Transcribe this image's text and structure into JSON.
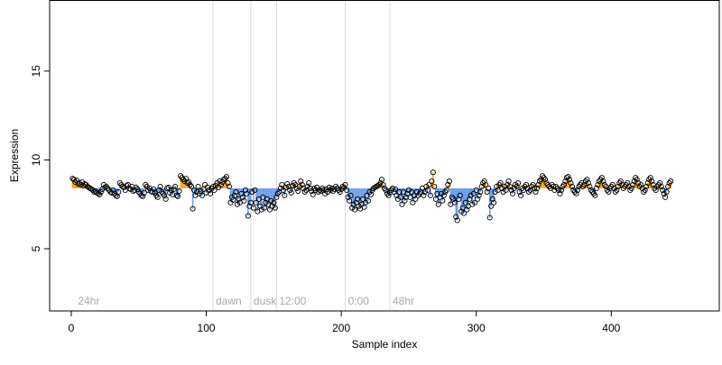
{
  "chart_data": {
    "type": "scatter",
    "title": "",
    "xlabel": "Sample index",
    "ylabel": "Expression",
    "xlim": [
      -16,
      480
    ],
    "ylim": [
      1.5,
      19
    ],
    "x_ticks": [
      0,
      100,
      200,
      300,
      400
    ],
    "y_ticks": [
      5,
      10,
      15
    ],
    "grid": false,
    "legend": "none",
    "baseline": 8.4,
    "phase_markers": [
      {
        "x": 105,
        "label": "dawn"
      },
      {
        "x": 133,
        "label": "dusk"
      },
      {
        "x": 152,
        "label": "12:00"
      },
      {
        "x": 203,
        "label": "0:00"
      },
      {
        "x": 236,
        "label": "48hr"
      }
    ],
    "phase_label_start": {
      "x": 3,
      "label": "24hr"
    },
    "colors": {
      "above_baseline": "#f5a623",
      "below_baseline": "#6d9eeb",
      "marker_line": "#d9d9d9",
      "point_edge": "#000000",
      "axis": "#000000"
    },
    "y_values": [
      8.95,
      8.9,
      8.75,
      8.85,
      8.65,
      8.7,
      8.6,
      8.75,
      8.55,
      8.65,
      8.6,
      8.5,
      8.45,
      8.4,
      8.35,
      8.3,
      8.2,
      8.25,
      8.15,
      8.1,
      8.05,
      8.2,
      8.35,
      8.6,
      8.45,
      8.5,
      8.4,
      8.3,
      8.2,
      8.15,
      8.3,
      8.1,
      8.0,
      7.95,
      8.2,
      8.7,
      8.6,
      8.5,
      8.45,
      8.3,
      8.55,
      8.6,
      8.4,
      8.35,
      8.5,
      8.25,
      8.3,
      8.45,
      8.35,
      8.2,
      8.1,
      8.0,
      7.95,
      8.15,
      8.6,
      8.5,
      8.3,
      8.4,
      8.25,
      8.2,
      8.35,
      8.15,
      8.0,
      7.9,
      8.3,
      8.5,
      8.2,
      8.1,
      8.0,
      7.8,
      8.4,
      8.45,
      8.15,
      8.3,
      8.05,
      8.35,
      8.5,
      8.0,
      7.95,
      8.25,
      9.1,
      9.0,
      8.9,
      8.8,
      8.95,
      8.7,
      8.75,
      8.6,
      8.5,
      7.25,
      8.3,
      8.0,
      8.2,
      8.5,
      8.1,
      8.25,
      8.0,
      8.35,
      8.6,
      8.15,
      8.45,
      8.3,
      8.1,
      8.4,
      8.5,
      8.3,
      8.55,
      8.7,
      8.45,
      8.8,
      8.6,
      8.75,
      8.9,
      8.95,
      9.05,
      8.7,
      8.5,
      7.6,
      7.9,
      7.75,
      8.0,
      8.2,
      7.5,
      7.8,
      7.6,
      8.1,
      7.9,
      7.7,
      8.3,
      8.1,
      6.85,
      7.4,
      7.6,
      8.2,
      7.3,
      8.3,
      7.6,
      7.1,
      7.8,
      7.4,
      7.2,
      7.9,
      7.3,
      7.6,
      7.8,
      7.5,
      7.2,
      7.7,
      7.4,
      7.6,
      7.3,
      7.9,
      8.1,
      8.2,
      8.4,
      8.6,
      8.3,
      8.0,
      8.45,
      8.65,
      8.5,
      8.3,
      8.15,
      8.55,
      8.7,
      8.6,
      8.4,
      8.25,
      8.5,
      8.8,
      8.6,
      8.4,
      8.2,
      8.3,
      8.5,
      8.7,
      8.4,
      8.25,
      8.05,
      8.4,
      8.3,
      8.45,
      8.2,
      8.3,
      8.25,
      8.4,
      8.3,
      8.1,
      8.35,
      8.2,
      8.45,
      8.3,
      8.4,
      8.25,
      8.35,
      8.5,
      8.4,
      8.3,
      8.2,
      8.35,
      8.5,
      8.45,
      8.6,
      8.3,
      7.9,
      7.7,
      8.0,
      7.3,
      7.5,
      7.2,
      7.6,
      7.8,
      7.4,
      7.25,
      7.5,
      7.8,
      7.35,
      7.6,
      8.0,
      7.7,
      8.2,
      8.05,
      8.3,
      8.4,
      8.45,
      8.5,
      8.55,
      8.6,
      8.7,
      8.9,
      8.6,
      8.4,
      8.3,
      8.1,
      8.0,
      8.15,
      8.3,
      8.4,
      8.2,
      8.35,
      8.0,
      7.8,
      8.2,
      7.9,
      7.5,
      8.2,
      7.7,
      7.9,
      8.1,
      8.3,
      7.9,
      8.2,
      7.6,
      8.0,
      7.8,
      8.2,
      8.0,
      8.1,
      8.2,
      8.4,
      8.0,
      8.2,
      8.5,
      8.3,
      8.6,
      8.0,
      8.8,
      9.3,
      8.5,
      7.8,
      8.1,
      7.5,
      7.9,
      8.1,
      7.7,
      8.0,
      8.2,
      8.3,
      8.6,
      8.8,
      7.5,
      7.9,
      7.8,
      7.6,
      6.8,
      6.6,
      7.8,
      8.0,
      7.1,
      7.3,
      7.0,
      7.6,
      7.2,
      7.4,
      7.8,
      8.0,
      7.5,
      8.1,
      7.6,
      8.3,
      7.8,
      8.0,
      8.2,
      8.5,
      8.7,
      8.8,
      8.6,
      8.2,
      8.4,
      6.75,
      7.4,
      7.8,
      7.6,
      8.2,
      8.5,
      8.3,
      8.6,
      8.7,
      8.4,
      8.2,
      8.5,
      8.3,
      8.6,
      8.8,
      8.5,
      8.3,
      8.1,
      8.4,
      8.6,
      8.5,
      8.7,
      8.2,
      8.0,
      8.4,
      8.3,
      8.5,
      8.6,
      8.4,
      8.2,
      8.3,
      8.5,
      8.6,
      8.4,
      8.2,
      8.4,
      8.6,
      8.8,
      8.9,
      9.1,
      9.0,
      8.9,
      8.7,
      8.6,
      8.5,
      8.4,
      8.6,
      8.5,
      8.3,
      8.5,
      8.4,
      8.3,
      8.1,
      8.3,
      8.5,
      8.6,
      8.8,
      9.0,
      9.05,
      8.9,
      8.7,
      8.5,
      8.3,
      8.2,
      8.1,
      8.3,
      8.5,
      8.6,
      8.7,
      8.5,
      8.6,
      8.8,
      8.9,
      8.7,
      8.5,
      8.3,
      8.2,
      8.1,
      8.0,
      8.4,
      8.6,
      8.8,
      8.9,
      9.0,
      8.8,
      8.6,
      8.5,
      8.3,
      8.2,
      8.4,
      8.5,
      8.6,
      8.4,
      8.2,
      8.3,
      8.5,
      8.7,
      8.8,
      8.6,
      8.4,
      8.5,
      8.6,
      8.7,
      8.5,
      8.3,
      8.4,
      8.6,
      8.8,
      9.0,
      8.9,
      8.7,
      8.5,
      8.6,
      8.4,
      8.2,
      8.3,
      8.5,
      8.7,
      8.9,
      9.0,
      8.8,
      8.6,
      8.4,
      8.3,
      8.5,
      8.6,
      8.7,
      8.5,
      8.3,
      8.1,
      7.9,
      8.2,
      8.5,
      8.7,
      8.8
    ]
  }
}
